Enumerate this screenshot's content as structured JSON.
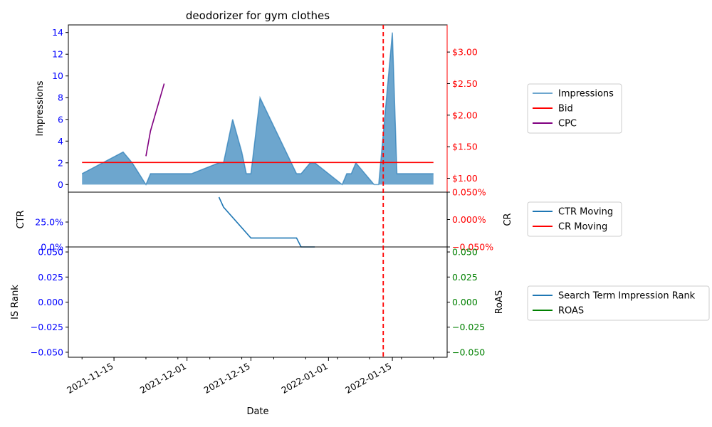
{
  "chart_data": {
    "type": "line",
    "title": "deodorizer for gym clothes",
    "xlabel": "Date",
    "x_range": [
      "2021-11-05",
      "2022-01-27"
    ],
    "x_ticks": [
      "2021-11-15",
      "2021-12-01",
      "2021-12-15",
      "2022-01-01",
      "2022-01-15"
    ],
    "marker_date": "2022-01-13",
    "marker_color": "#ff0000",
    "colors": {
      "impressions": "#1f77b4",
      "bid": "#ff0000",
      "cpc": "#800080",
      "ctr": "#1f77b4",
      "cr": "#ff0000",
      "is_rank": "#1f77b4",
      "roas": "#008000",
      "left_axis_ticks": "#0000ff",
      "right_axis_ticks": "#ff0000",
      "roas_axis_ticks": "#008000"
    },
    "panels": [
      {
        "id": "top",
        "ylabel_left": "Impressions",
        "ylabel_right": "",
        "y_left": {
          "min": -0.7,
          "max": 14.7,
          "ticks": [
            0,
            2,
            4,
            6,
            8,
            10,
            12,
            14
          ],
          "labels": [
            "0",
            "2",
            "4",
            "6",
            "8",
            "10",
            "12",
            "14"
          ]
        },
        "y_right": {
          "min": 0.78,
          "max": 3.43,
          "ticks": [
            1.0,
            1.5,
            2.0,
            2.5,
            3.0
          ],
          "labels": [
            "$1.00",
            "$1.50",
            "$2.00",
            "$2.50",
            "$3.00"
          ]
        },
        "series": [
          {
            "name": "Impressions",
            "style": "area",
            "axis": "left",
            "x": [
              "2021-11-08",
              "2021-11-17",
              "2021-11-19",
              "2021-11-22",
              "2021-11-23",
              "2021-12-02",
              "2021-12-08",
              "2021-12-09",
              "2021-12-11",
              "2021-12-13",
              "2021-12-14",
              "2021-12-15",
              "2021-12-17",
              "2021-12-25",
              "2021-12-26",
              "2021-12-28",
              "2021-12-29",
              "2022-01-04",
              "2022-01-05",
              "2022-01-06",
              "2022-01-07",
              "2022-01-09",
              "2022-01-11",
              "2022-01-12",
              "2022-01-15",
              "2022-01-16",
              "2022-01-24"
            ],
            "y": [
              1,
              3,
              2,
              0,
              1,
              1,
              2,
              2,
              6,
              3,
              1,
              1,
              8,
              1,
              1,
              2,
              2,
              0,
              1,
              1,
              2,
              1,
              0,
              0,
              14,
              1,
              1
            ]
          },
          {
            "name": "Bid",
            "style": "line",
            "axis": "right",
            "x": [
              "2021-11-08",
              "2022-01-24"
            ],
            "y": [
              1.25,
              1.25
            ]
          },
          {
            "name": "CPC",
            "style": "line",
            "axis": "right",
            "x": [
              "2021-11-22",
              "2021-11-23",
              "2021-11-26"
            ],
            "y": [
              1.35,
              1.75,
              2.5
            ]
          }
        ],
        "legend": [
          "Impressions",
          "Bid",
          "CPC"
        ]
      },
      {
        "id": "middle",
        "ylabel_left": "CTR",
        "ylabel_right": "CR",
        "y_left": {
          "min": 0,
          "max": 0.55,
          "ticks": [
            0,
            0.25
          ],
          "labels": [
            "0.0%",
            "25.0%"
          ]
        },
        "y_right": {
          "min": -0.05,
          "max": 0.05,
          "ticks": [
            -0.05,
            0.0,
            0.05
          ],
          "labels": [
            "−0.050%",
            "0.000%",
            "0.050%"
          ]
        },
        "series": [
          {
            "name": "CTR Moving",
            "axis": "left",
            "x": [
              "2021-12-08",
              "2021-12-09",
              "2021-12-15",
              "2021-12-25",
              "2021-12-26",
              "2021-12-29"
            ],
            "y": [
              0.5,
              0.4,
              0.09,
              0.09,
              0.0,
              0.0
            ]
          },
          {
            "name": "CR Moving",
            "axis": "right",
            "x": [],
            "y": []
          }
        ],
        "legend": [
          "CTR Moving",
          "CR Moving"
        ]
      },
      {
        "id": "bottom",
        "ylabel_left": "IS Rank",
        "ylabel_right": "RoAS",
        "y_left": {
          "min": -0.055,
          "max": 0.055,
          "ticks": [
            -0.05,
            -0.025,
            0.0,
            0.025,
            0.05
          ],
          "labels": [
            "−0.050",
            "−0.025",
            "0.000",
            "0.025",
            "0.050"
          ]
        },
        "y_right": {
          "min": -0.055,
          "max": 0.055,
          "ticks": [
            -0.05,
            -0.025,
            0.0,
            0.025,
            0.05
          ],
          "labels": [
            "−0.050",
            "−0.025",
            "0.000",
            "0.025",
            "0.050"
          ]
        },
        "series": [
          {
            "name": "Search Term Impression Rank",
            "axis": "left",
            "x": [],
            "y": []
          },
          {
            "name": "ROAS",
            "axis": "right",
            "x": [],
            "y": []
          }
        ],
        "legend": [
          "Search Term Impression Rank",
          "ROAS"
        ]
      }
    ]
  }
}
